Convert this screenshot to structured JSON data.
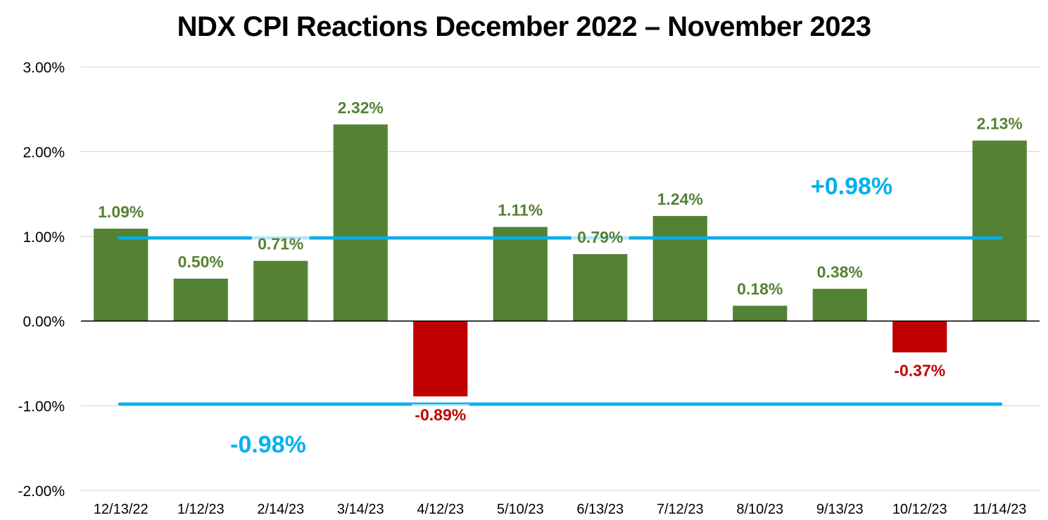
{
  "chart_data": {
    "type": "bar",
    "title": "NDX CPI Reactions December 2022 – November 2023",
    "xlabel": "",
    "ylabel": "",
    "ylim": [
      -2.0,
      3.0
    ],
    "y_ticks": [
      3.0,
      2.0,
      1.0,
      0.0,
      -1.0,
      -2.0
    ],
    "y_tick_labels": [
      "3.00%",
      "2.00%",
      "1.00%",
      "0.00%",
      "-1.00%",
      "-2.00%"
    ],
    "grid": true,
    "legend": "none",
    "categories": [
      "12/13/22",
      "1/12/23",
      "2/14/23",
      "3/14/23",
      "4/12/23",
      "5/10/23",
      "6/13/23",
      "7/12/23",
      "8/10/23",
      "9/13/23",
      "10/12/23",
      "11/14/23"
    ],
    "values": [
      1.09,
      0.5,
      0.71,
      2.32,
      -0.89,
      1.11,
      0.79,
      1.24,
      0.18,
      0.38,
      -0.37,
      2.13
    ],
    "data_labels": [
      "1.09%",
      "0.50%",
      "0.71%",
      "2.32%",
      "-0.89%",
      "1.11%",
      "0.79%",
      "1.24%",
      "0.18%",
      "0.38%",
      "-0.37%",
      "2.13%"
    ],
    "reference_lines": [
      {
        "value": 0.98,
        "label": "+0.98%"
      },
      {
        "value": -0.98,
        "label": "-0.98%"
      }
    ],
    "colors": {
      "positive": "#548235",
      "negative": "#C00000",
      "reference": "#00B0F0",
      "grid": "#D9D9D9",
      "zero_axis": "#000000",
      "text": "#000000"
    }
  }
}
